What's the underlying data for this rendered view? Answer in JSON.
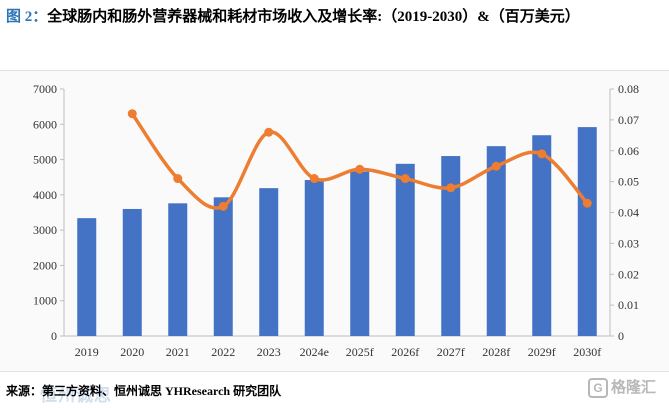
{
  "header": {
    "figure_label": "图 2：",
    "title": "全球肠内和肠外营养器械和耗材市场收入及增长率:（2019-2030）&（百万美元）"
  },
  "footer": {
    "source": "来源：第三方资料、恒州诚思 YHResearch 研究团队"
  },
  "watermarks": {
    "center": "恒州诚思",
    "corner": "格隆汇"
  },
  "colors": {
    "bar": "#4472c4",
    "line": "#ed7d31"
  },
  "chart_data": {
    "type": "bar",
    "categories": [
      "2019",
      "2020",
      "2021",
      "2022",
      "2023",
      "2024e",
      "2025f",
      "2026f",
      "2027f",
      "2028f",
      "2029f",
      "2030f"
    ],
    "series": [
      {
        "name": "市场收入（百万美元）",
        "type": "bar",
        "axis": "left",
        "values": [
          3340,
          3600,
          3760,
          3930,
          4190,
          4420,
          4660,
          4880,
          5100,
          5380,
          5690,
          5920
        ]
      },
      {
        "name": "增长率",
        "type": "line",
        "axis": "right",
        "values": [
          null,
          0.072,
          0.051,
          0.042,
          0.066,
          0.051,
          0.054,
          0.051,
          0.048,
          0.055,
          0.059,
          0.043
        ]
      }
    ],
    "y_left": {
      "min": 0,
      "max": 7000,
      "ticks": [
        "0",
        "1000",
        "2000",
        "3000",
        "4000",
        "5000",
        "6000",
        "7000"
      ]
    },
    "y_right": {
      "min": 0,
      "max": 0.08,
      "ticks": [
        "0",
        "0.01",
        "0.02",
        "0.03",
        "0.04",
        "0.05",
        "0.06",
        "0.07",
        "0.08"
      ]
    },
    "grid": false,
    "legend": "none"
  }
}
